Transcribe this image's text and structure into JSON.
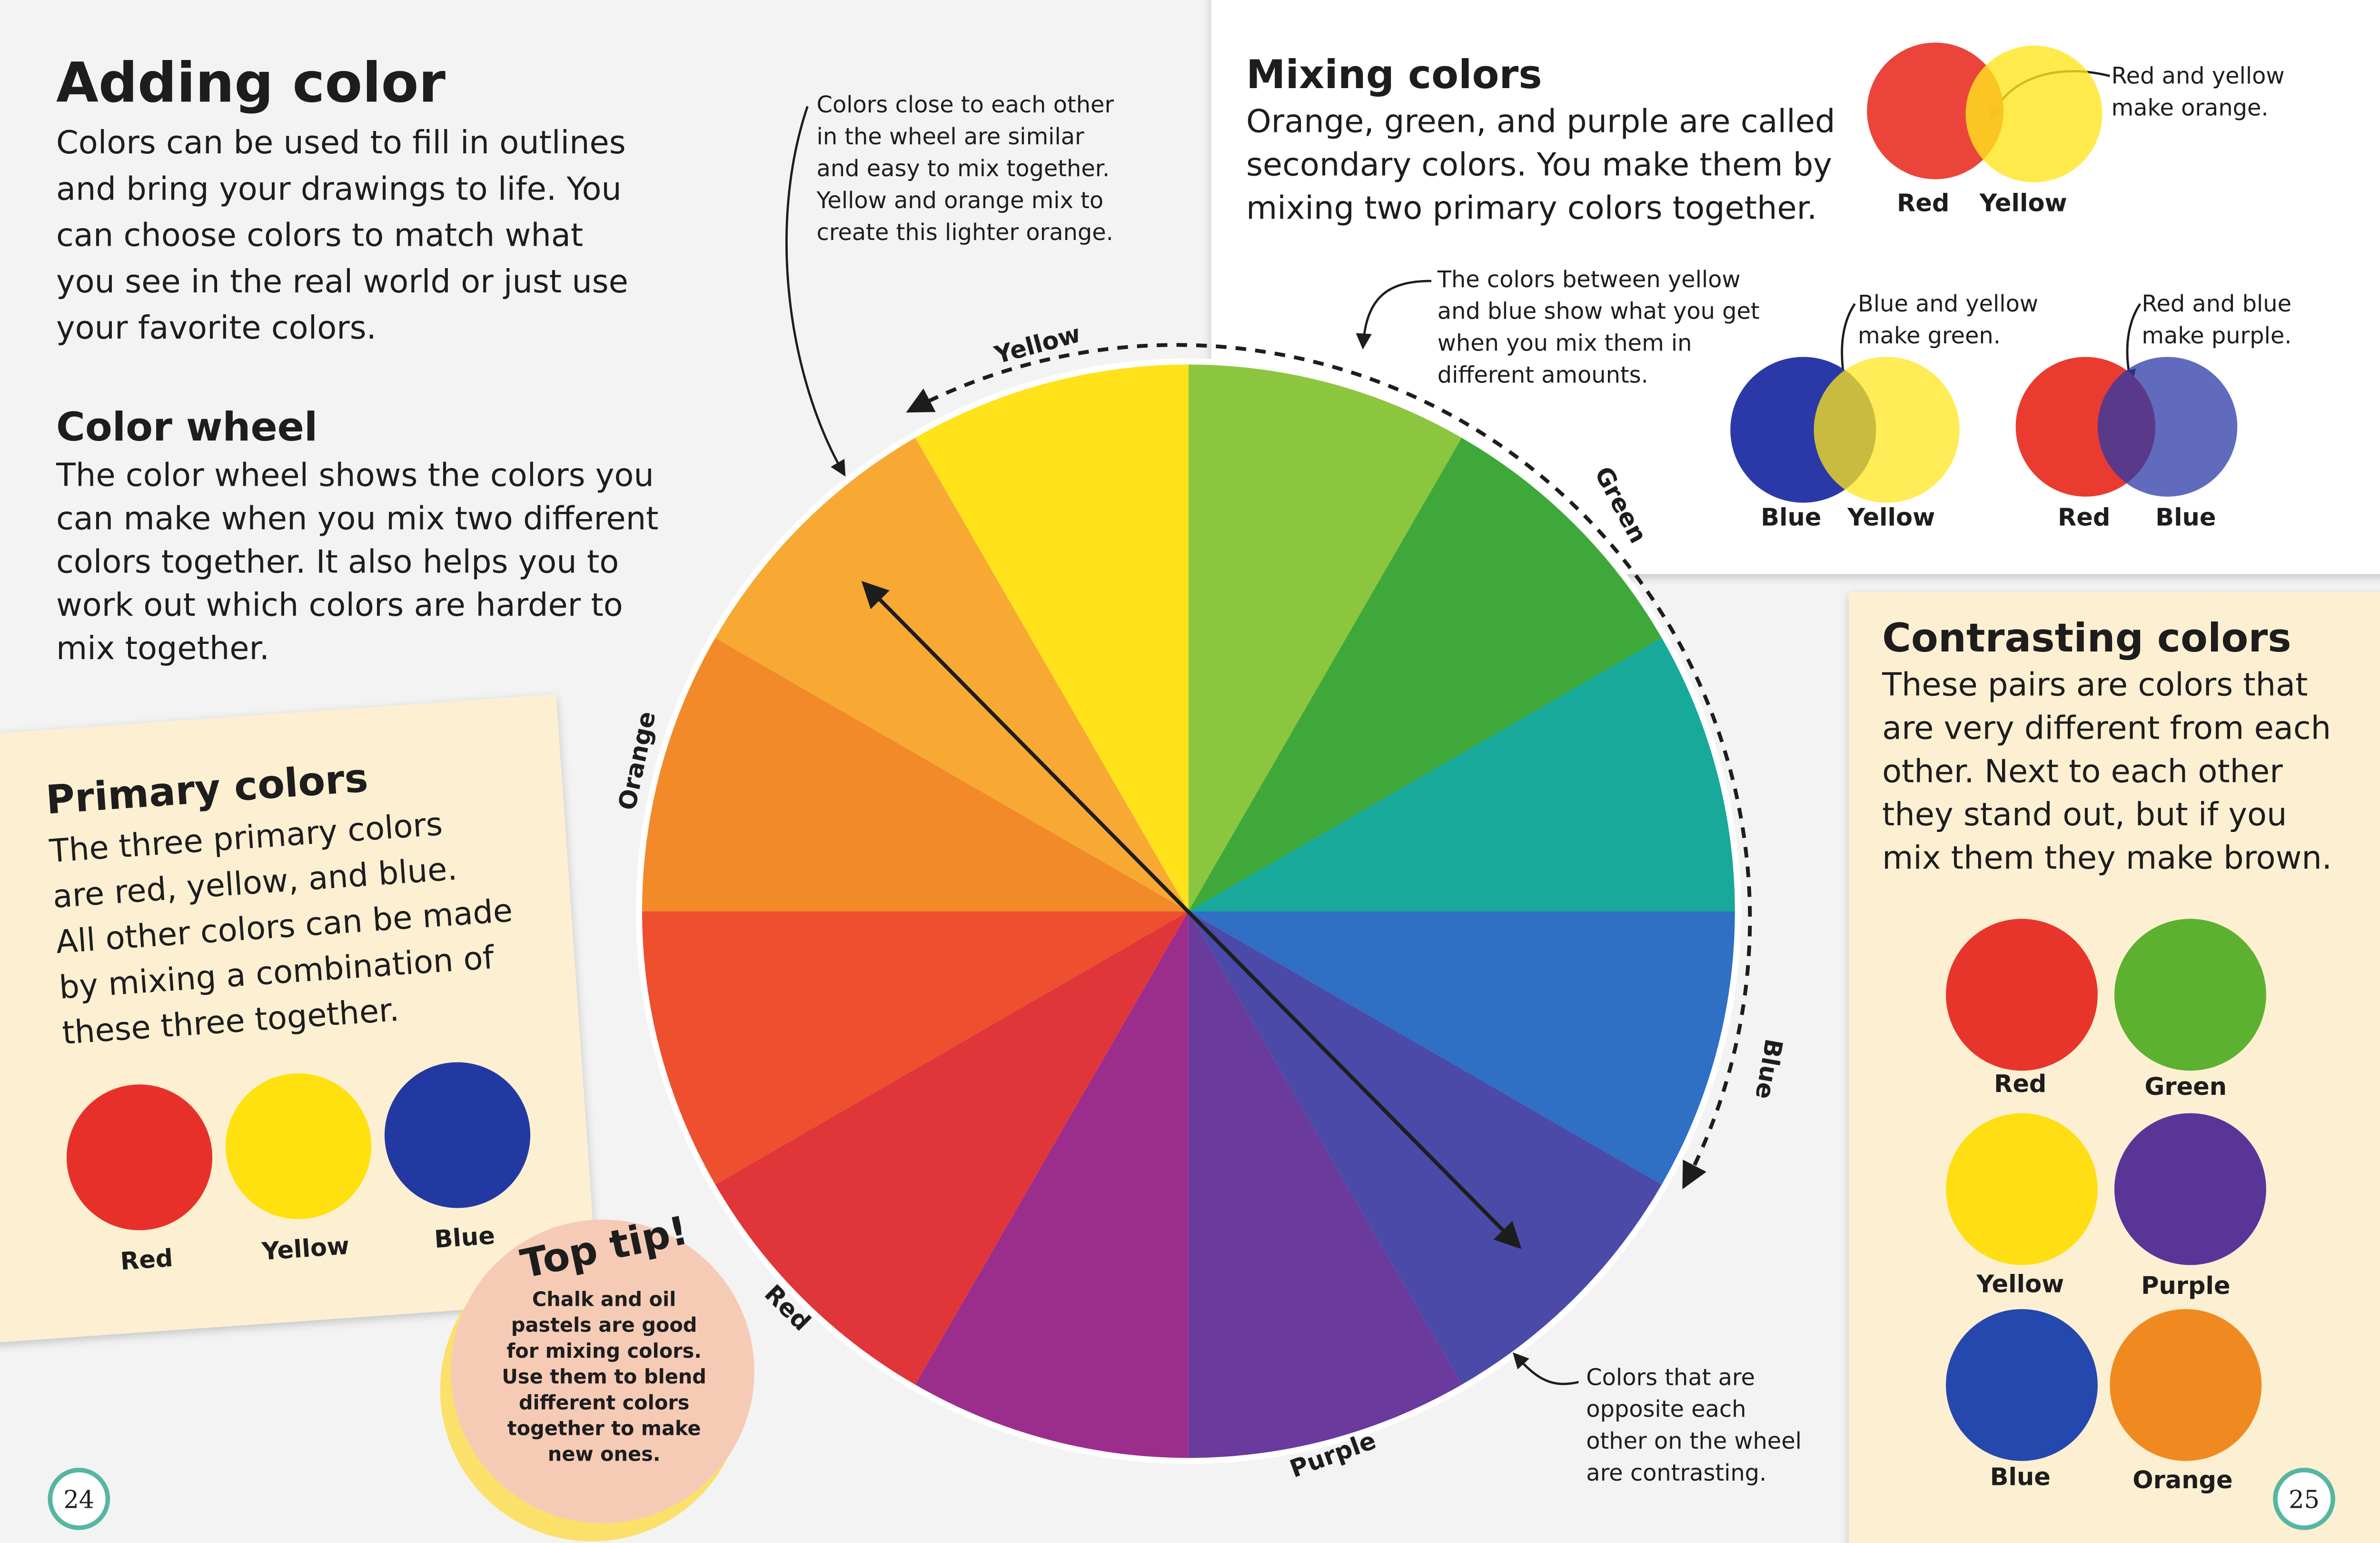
{
  "adding_color": {
    "title": "Adding color",
    "lines": [
      "Colors can be used to fill in outlines",
      "and bring your drawings to life. You",
      "can choose colors to match what",
      "you see in the real world or just use",
      "your favorite colors."
    ]
  },
  "color_wheel": {
    "title": "Color wheel",
    "lines": [
      "The color wheel shows the colors you",
      "can make when you mix two different",
      "colors together. It also helps you to",
      "work out which colors are harder to",
      "mix together."
    ]
  },
  "primary_colors": {
    "title": "Primary colors",
    "lines": [
      "The three primary colors",
      "are red, yellow, and blue.",
      "All other colors can be made",
      "by mixing a combination of",
      "these three together."
    ],
    "swatches": [
      "Red",
      "Yellow",
      "Blue"
    ]
  },
  "top_tip": {
    "title": "Top tip!",
    "lines": [
      "Chalk and oil",
      "pastels are good",
      "for mixing colors.",
      "Use them to blend",
      "different colors",
      "together to make",
      "new ones."
    ]
  },
  "wheel": {
    "labels": [
      "Yellow",
      "Green",
      "Blue",
      "Purple",
      "Red",
      "Orange"
    ],
    "note_similar": [
      "Colors close to each other",
      "in the wheel are similar",
      "and easy to mix together.",
      "Yellow and orange mix to",
      "create this lighter orange."
    ],
    "note_contrast": [
      "Colors that are",
      "opposite each",
      "other on the wheel",
      "are contrasting."
    ]
  },
  "mixing_colors": {
    "title": "Mixing colors",
    "lines": [
      "Orange, green, and purple are called",
      "secondary colors. You make them by",
      "mixing two primary colors together."
    ],
    "note_orange": [
      "Red and yellow",
      "make orange."
    ],
    "orange_labels": [
      "Red",
      "Yellow"
    ],
    "note_between": [
      "The colors between yellow",
      "and blue show what you get",
      "when you mix them in",
      "different amounts."
    ],
    "note_green": [
      "Blue and yellow",
      "make green."
    ],
    "green_labels": [
      "Blue",
      "Yellow"
    ],
    "note_purple": [
      "Red and blue",
      "make purple."
    ],
    "purple_labels": [
      "Red",
      "Blue"
    ]
  },
  "contrasting_colors": {
    "title": "Contrasting colors",
    "lines": [
      "These pairs are colors that",
      "are very different from each",
      "other. Next to each other",
      "they stand out, but if you",
      "mix them they make brown."
    ],
    "swatches": [
      "Red",
      "Green",
      "Yellow",
      "Purple",
      "Blue",
      "Orange"
    ]
  },
  "page_numbers": [
    "24",
    "25"
  ]
}
